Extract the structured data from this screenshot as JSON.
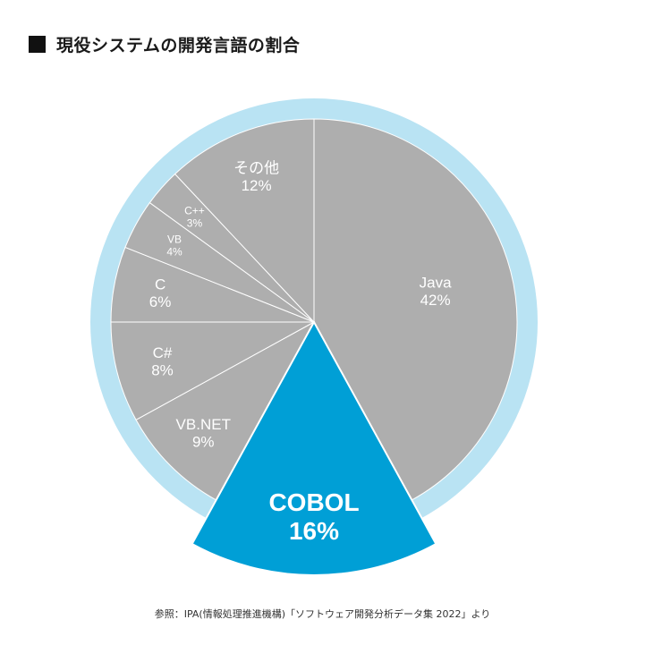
{
  "title": "現役システムの開発言語の割合",
  "source": "参照：IPA(情報処理推進機構)「ソフトウェア開発分析データ集 2022」より",
  "colors": {
    "ring": "#b9e3f3",
    "slice": "#aeaeae",
    "divider": "#ffffff",
    "highlight": "#009fd6",
    "label": "#ffffff"
  },
  "chart_data": {
    "type": "pie",
    "unit": "%",
    "highlight": "COBOL",
    "slices": [
      {
        "label": "Java",
        "value": 42,
        "value_text": "42%"
      },
      {
        "label": "COBOL",
        "value": 16,
        "value_text": "16%"
      },
      {
        "label": "VB.NET",
        "value": 9,
        "value_text": "9%"
      },
      {
        "label": "C#",
        "value": 8,
        "value_text": "8%"
      },
      {
        "label": "C",
        "value": 6,
        "value_text": "6%"
      },
      {
        "label": "VB",
        "value": 4,
        "value_text": "4%"
      },
      {
        "label": "C++",
        "value": 3,
        "value_text": "3%"
      },
      {
        "label": "その他",
        "value": 12,
        "value_text": "12%"
      }
    ]
  }
}
